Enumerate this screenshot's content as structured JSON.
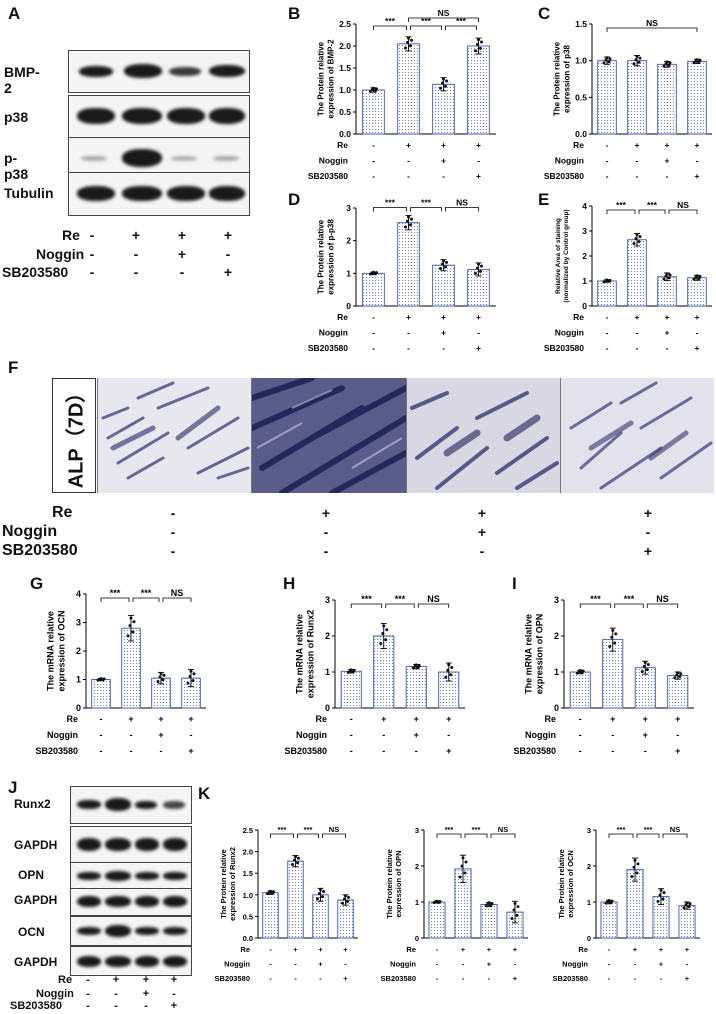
{
  "panels": {
    "A": "A",
    "B": "B",
    "C": "C",
    "D": "D",
    "E": "E",
    "F": "F",
    "G": "G",
    "H": "H",
    "I": "I",
    "J": "J",
    "K": "K"
  },
  "conditions": {
    "re": "Re",
    "noggin": "Noggin",
    "sb": "SB203580",
    "re_signs": [
      "-",
      "+",
      "+",
      "+"
    ],
    "noggin_signs": [
      "-",
      "-",
      "+",
      "-"
    ],
    "sb_signs": [
      "-",
      "-",
      "-",
      "+"
    ]
  },
  "western_a": {
    "rows": [
      "BMP-2",
      "p38",
      "p-p38",
      "Tubulin"
    ]
  },
  "western_j": {
    "rows": [
      "Runx2",
      "GAPDH",
      "OPN",
      "GAPDH",
      "OCN",
      "GAPDH"
    ]
  },
  "alp": {
    "label": "ALP（7D）"
  },
  "chart_data": [
    {
      "panel": "B",
      "type": "bar",
      "ylabel": "The Protein relative expression of BMP-2",
      "ylim": [
        0,
        2.5
      ],
      "yticks": [
        "0.0",
        "0.5",
        "1.0",
        "1.5",
        "2.0",
        "2.5"
      ],
      "values": [
        1.0,
        2.05,
        1.13,
        2.0
      ],
      "errors": [
        0.05,
        0.16,
        0.15,
        0.18
      ],
      "sig": [
        {
          "from": 0,
          "to": 1,
          "text": "***"
        },
        {
          "from": 1,
          "to": 2,
          "text": "***"
        },
        {
          "from": 2,
          "to": 3,
          "text": "***"
        },
        {
          "from": 1,
          "to": 3,
          "text": "NS"
        }
      ]
    },
    {
      "panel": "C",
      "type": "bar",
      "ylabel": "The Protein relative expression of p38",
      "ylim": [
        0,
        1.5
      ],
      "yticks": [
        "0.0",
        "0.5",
        "1.0",
        "1.5"
      ],
      "values": [
        1.0,
        1.0,
        0.95,
        0.99
      ],
      "errors": [
        0.05,
        0.07,
        0.04,
        0.03
      ],
      "sig": [
        {
          "from": 0,
          "to": 3,
          "text": "NS"
        }
      ]
    },
    {
      "panel": "D",
      "type": "bar",
      "ylabel": "The Protein relative expression of p-p38",
      "ylim": [
        0,
        3
      ],
      "yticks": [
        "0",
        "1",
        "2",
        "3"
      ],
      "values": [
        1.0,
        2.55,
        1.25,
        1.12
      ],
      "errors": [
        0.04,
        0.22,
        0.17,
        0.2
      ],
      "sig": [
        {
          "from": 0,
          "to": 1,
          "text": "***"
        },
        {
          "from": 1,
          "to": 2,
          "text": "***"
        },
        {
          "from": 2,
          "to": 3,
          "text": "NS"
        }
      ]
    },
    {
      "panel": "E",
      "type": "bar",
      "ylabel": "Relative Area of staining (normalized by Control group)",
      "ylim": [
        0,
        4
      ],
      "yticks": [
        "0",
        "1",
        "2",
        "3",
        "4"
      ],
      "values": [
        1.0,
        2.65,
        1.17,
        1.13
      ],
      "errors": [
        0.05,
        0.25,
        0.15,
        0.1
      ],
      "sig": [
        {
          "from": 0,
          "to": 1,
          "text": "***"
        },
        {
          "from": 1,
          "to": 2,
          "text": "***"
        },
        {
          "from": 2,
          "to": 3,
          "text": "NS"
        }
      ]
    },
    {
      "panel": "G",
      "type": "bar",
      "ylabel": "The mRNA relative expression of OCN",
      "ylim": [
        0,
        4
      ],
      "yticks": [
        "0",
        "1",
        "2",
        "3",
        "4"
      ],
      "values": [
        1.0,
        2.8,
        1.05,
        1.05
      ],
      "errors": [
        0.04,
        0.45,
        0.2,
        0.3
      ],
      "sig": [
        {
          "from": 0,
          "to": 1,
          "text": "***"
        },
        {
          "from": 1,
          "to": 2,
          "text": "***"
        },
        {
          "from": 2,
          "to": 3,
          "text": "NS"
        }
      ]
    },
    {
      "panel": "H",
      "type": "bar",
      "ylabel": "The mRNA relative expression of Runx2",
      "ylim": [
        0,
        3
      ],
      "yticks": [
        "0",
        "1",
        "2",
        "3"
      ],
      "values": [
        1.02,
        2.0,
        1.15,
        1.0
      ],
      "errors": [
        0.05,
        0.35,
        0.06,
        0.25
      ],
      "sig": [
        {
          "from": 0,
          "to": 1,
          "text": "***"
        },
        {
          "from": 1,
          "to": 2,
          "text": "***"
        },
        {
          "from": 2,
          "to": 3,
          "text": "NS"
        }
      ]
    },
    {
      "panel": "I",
      "type": "bar",
      "ylabel": "The mRNA relative expression of OPN",
      "ylim": [
        0,
        3
      ],
      "yticks": [
        "0",
        "1",
        "2",
        "3"
      ],
      "values": [
        1.0,
        1.9,
        1.12,
        0.9
      ],
      "errors": [
        0.05,
        0.32,
        0.18,
        0.1
      ],
      "sig": [
        {
          "from": 0,
          "to": 1,
          "text": "***"
        },
        {
          "from": 1,
          "to": 2,
          "text": "***"
        },
        {
          "from": 2,
          "to": 3,
          "text": "NS"
        }
      ]
    },
    {
      "panel": "K1",
      "type": "bar",
      "ylabel": "The Protein relative expression of Runx2",
      "ylim": [
        0,
        2.5
      ],
      "yticks": [
        "0.0",
        "0.5",
        "1.0",
        "1.5",
        "2.0",
        "2.5"
      ],
      "values": [
        1.05,
        1.78,
        1.0,
        0.88
      ],
      "errors": [
        0.04,
        0.13,
        0.15,
        0.12
      ],
      "sig": [
        {
          "from": 0,
          "to": 1,
          "text": "***"
        },
        {
          "from": 1,
          "to": 2,
          "text": "***"
        },
        {
          "from": 2,
          "to": 3,
          "text": "NS"
        }
      ]
    },
    {
      "panel": "K2",
      "type": "bar",
      "ylabel": "The Protein relative expression of OPN",
      "ylim": [
        0,
        3
      ],
      "yticks": [
        "0",
        "1",
        "2",
        "3"
      ],
      "values": [
        1.0,
        1.92,
        0.93,
        0.72
      ],
      "errors": [
        0.03,
        0.38,
        0.06,
        0.3
      ],
      "sig": [
        {
          "from": 0,
          "to": 1,
          "text": "***"
        },
        {
          "from": 1,
          "to": 2,
          "text": "***"
        },
        {
          "from": 2,
          "to": 3,
          "text": "NS"
        }
      ]
    },
    {
      "panel": "K3",
      "type": "bar",
      "ylabel": "The Protein relative expression of OCN",
      "ylim": [
        0,
        3
      ],
      "yticks": [
        "0",
        "1",
        "2",
        "3"
      ],
      "values": [
        1.0,
        1.9,
        1.15,
        0.9
      ],
      "errors": [
        0.05,
        0.32,
        0.22,
        0.1
      ],
      "sig": [
        {
          "from": 0,
          "to": 1,
          "text": "***"
        },
        {
          "from": 1,
          "to": 2,
          "text": "***"
        },
        {
          "from": 2,
          "to": 3,
          "text": "NS"
        }
      ]
    }
  ]
}
